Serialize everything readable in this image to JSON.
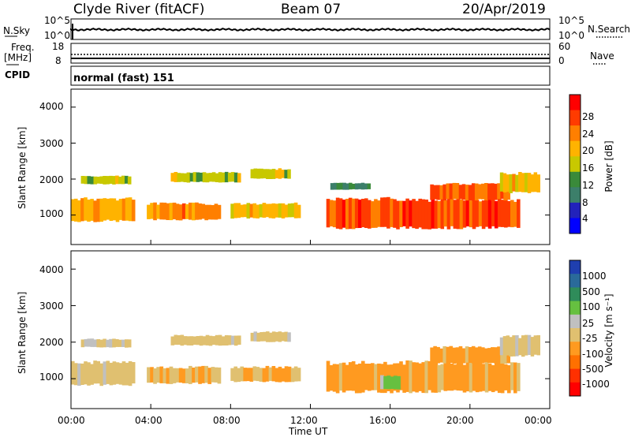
{
  "header": {
    "station": "Clyde River (fitACF)",
    "beam": "Beam 07",
    "date": "20/Apr/2019"
  },
  "noise_panel": {
    "left_label": "N.Sky",
    "right_label": "N.Search",
    "ticks_left": [
      "10^5",
      "10^0"
    ],
    "ticks_right": [
      "10^5",
      "10^0"
    ]
  },
  "freq_panel": {
    "left_label_1": "Freq.",
    "left_label_2": "[MHz]",
    "right_label": "Nave",
    "ticks_left": [
      "18",
      "8"
    ],
    "ticks_right": [
      "60",
      "0"
    ]
  },
  "cpid": {
    "label": "CPID",
    "value": "normal (fast) 151"
  },
  "power_panel": {
    "ylabel": "Slant Range [km]",
    "yticks": [
      "4000",
      "3000",
      "2000",
      "1000"
    ],
    "colorbar_label": "Power [dB]",
    "colorbar_ticks": [
      "28",
      "24",
      "20",
      "16",
      "12",
      "8",
      "4"
    ],
    "colorbar_colors": [
      "#ff0000",
      "#ff3b00",
      "#ff7f00",
      "#ffb300",
      "#c8c800",
      "#3a8a3a",
      "#3c7f6a",
      "#2222bb",
      "#0000ff"
    ]
  },
  "velocity_panel": {
    "ylabel": "Slant Range [km]",
    "yticks": [
      "4000",
      "3000",
      "2000",
      "1000"
    ],
    "colorbar_label": "Velocity [m s⁻¹]",
    "colorbar_ticks": [
      "1000",
      "500",
      "100",
      "25",
      "-25",
      "-100",
      "-500",
      "-1000"
    ],
    "colorbar_colors": [
      "#1f3faf",
      "#2a6a9a",
      "#2f8c5a",
      "#66c040",
      "#c0c0c0",
      "#e0c070",
      "#ff9a20",
      "#ff7000",
      "#ff3000",
      "#ff0000"
    ]
  },
  "xaxis": {
    "label": "Time UT",
    "ticks": [
      "00:00",
      "04:00",
      "08:00",
      "12:00",
      "16:00",
      "20:00",
      "00:00"
    ]
  },
  "chart_data": [
    {
      "type": "heatmap",
      "title": "Power [dB]",
      "xlabel": "Time UT",
      "ylabel": "Slant Range [km]",
      "xlim": [
        0,
        24
      ],
      "ylim": [
        180,
        4500
      ],
      "clim": [
        0,
        30
      ],
      "bands": [
        {
          "t0": 0.0,
          "t1": 3.2,
          "r0": 800,
          "r1": 1500,
          "power": 20
        },
        {
          "t0": 0.5,
          "t1": 3.0,
          "r0": 1850,
          "r1": 2100,
          "power": 14
        },
        {
          "t0": 3.8,
          "t1": 7.5,
          "r0": 850,
          "r1": 1350,
          "power": 22
        },
        {
          "t0": 5.0,
          "t1": 8.5,
          "r0": 1900,
          "r1": 2200,
          "power": 15
        },
        {
          "t0": 8.0,
          "t1": 11.5,
          "r0": 900,
          "r1": 1350,
          "power": 18
        },
        {
          "t0": 9.0,
          "t1": 11.0,
          "r0": 2000,
          "r1": 2300,
          "power": 16
        },
        {
          "t0": 12.8,
          "t1": 22.5,
          "r0": 600,
          "r1": 1500,
          "power": 26
        },
        {
          "t0": 13.0,
          "t1": 15.0,
          "r0": 1700,
          "r1": 1900,
          "power": 10
        },
        {
          "t0": 18.0,
          "t1": 22.0,
          "r0": 1400,
          "r1": 1900,
          "power": 24
        },
        {
          "t0": 21.5,
          "t1": 23.5,
          "r0": 1600,
          "r1": 2200,
          "power": 18
        }
      ]
    },
    {
      "type": "heatmap",
      "title": "Velocity [m s⁻¹]",
      "xlabel": "Time UT",
      "ylabel": "Slant Range [km]",
      "xlim": [
        0,
        24
      ],
      "ylim": [
        180,
        4500
      ],
      "clim": [
        -1000,
        1000
      ],
      "bands": [
        {
          "t0": 0.0,
          "t1": 3.2,
          "r0": 800,
          "r1": 1500,
          "velocity": -100
        },
        {
          "t0": 0.5,
          "t1": 3.0,
          "r0": 1850,
          "r1": 2100,
          "velocity": 0
        },
        {
          "t0": 3.8,
          "t1": 7.5,
          "r0": 850,
          "r1": 1350,
          "velocity": -200
        },
        {
          "t0": 5.0,
          "t1": 8.5,
          "r0": 1900,
          "r1": 2200,
          "velocity": -100
        },
        {
          "t0": 8.0,
          "t1": 11.5,
          "r0": 900,
          "r1": 1350,
          "velocity": -200
        },
        {
          "t0": 9.0,
          "t1": 11.0,
          "r0": 2000,
          "r1": 2300,
          "velocity": -100
        },
        {
          "t0": 12.8,
          "t1": 22.5,
          "r0": 600,
          "r1": 1500,
          "velocity": -300
        },
        {
          "t0": 15.5,
          "t1": 16.5,
          "r0": 700,
          "r1": 1100,
          "velocity": 300
        },
        {
          "t0": 18.0,
          "t1": 22.0,
          "r0": 1400,
          "r1": 1900,
          "velocity": -300
        },
        {
          "t0": 21.5,
          "t1": 23.5,
          "r0": 1600,
          "r1": 2200,
          "velocity": -50
        }
      ]
    }
  ]
}
